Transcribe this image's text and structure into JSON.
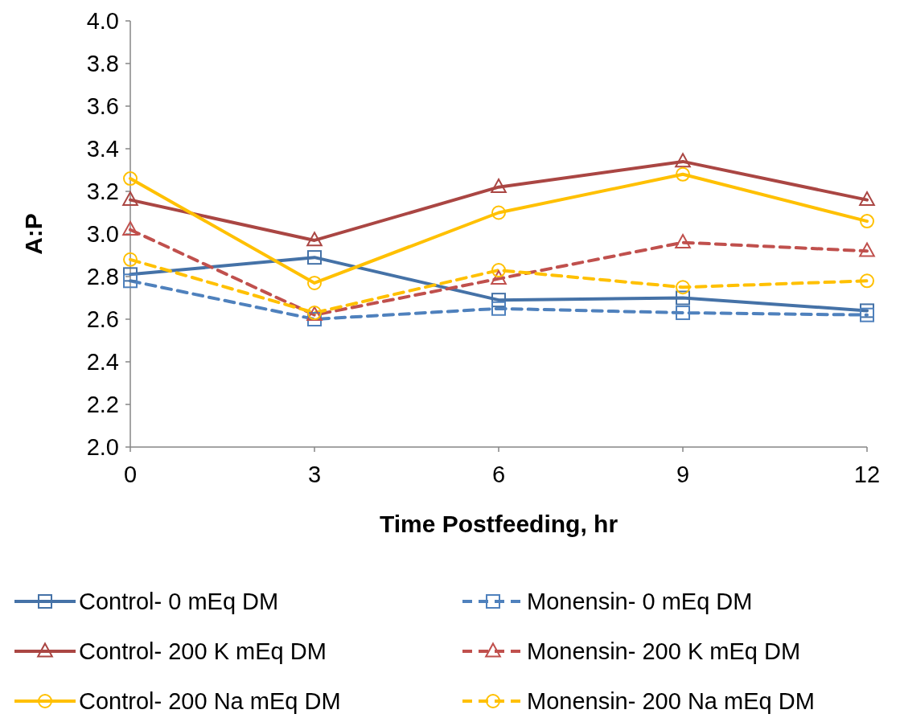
{
  "chart_data": {
    "type": "line",
    "xlabel": "Time Postfeeding, hr",
    "ylabel": "A:P",
    "x": [
      0,
      3,
      6,
      9,
      12
    ],
    "xlim": [
      0,
      12
    ],
    "xticks": [
      0,
      3,
      6,
      9,
      12
    ],
    "ylim": [
      2,
      4
    ],
    "yticks": [
      {
        "value": 2,
        "label": "2.0"
      },
      {
        "value": 2.2,
        "label": "2.2"
      },
      {
        "value": 2.4,
        "label": "2.4"
      },
      {
        "value": 2.6,
        "label": "2.6"
      },
      {
        "value": 2.8,
        "label": "2.8"
      },
      {
        "value": 3,
        "label": "3.0"
      },
      {
        "value": 3.2,
        "label": "3.2"
      },
      {
        "value": 3.4,
        "label": "3.4"
      },
      {
        "value": 3.6,
        "label": "3.6"
      },
      {
        "value": 3.8,
        "label": "3.8"
      },
      {
        "value": 4,
        "label": "4.0"
      }
    ],
    "grid": false,
    "legend": "bottom",
    "series": [
      {
        "name": "Control- 0 mEq DM",
        "color": "#4572a7",
        "marker": "square",
        "line_style": "solid",
        "values": [
          2.81,
          2.89,
          2.69,
          2.7,
          2.64
        ]
      },
      {
        "name": "Monensin- 0 mEq DM",
        "color": "#4f81bd",
        "marker": "square",
        "line_style": "dashed",
        "values": [
          2.78,
          2.6,
          2.65,
          2.63,
          2.62
        ]
      },
      {
        "name": "Control- 200 K mEq DM",
        "color": "#aa4643",
        "marker": "triangle",
        "line_style": "solid",
        "values": [
          3.16,
          2.97,
          3.22,
          3.34,
          3.16
        ]
      },
      {
        "name": "Monensin- 200 K mEq DM",
        "color": "#c0504d",
        "marker": "triangle",
        "line_style": "dashed",
        "values": [
          3.02,
          2.62,
          2.79,
          2.96,
          2.92
        ]
      },
      {
        "name": "Control- 200 Na mEq DM",
        "color": "#ffc000",
        "marker": "circle",
        "line_style": "solid",
        "values": [
          3.26,
          2.77,
          3.1,
          3.28,
          3.06
        ]
      },
      {
        "name": "Monensin- 200 Na mEq DM",
        "color": "#ffc000",
        "marker": "circle",
        "line_style": "dashed",
        "values": [
          2.88,
          2.63,
          2.83,
          2.75,
          2.78
        ]
      }
    ]
  }
}
